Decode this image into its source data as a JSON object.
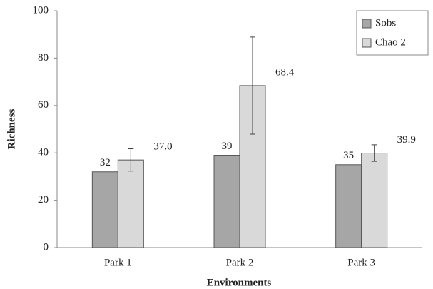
{
  "chart_data": {
    "type": "bar",
    "x_label": "Environments",
    "y_label": "Richness",
    "categories": [
      "Park 1",
      "Park 2",
      "Park 3"
    ],
    "series": [
      {
        "name": "Sobs",
        "color": "#a6a6a6",
        "values": [
          32,
          39,
          35
        ],
        "value_labels": [
          "32",
          "39",
          "35"
        ]
      },
      {
        "name": "Chao 2",
        "color": "#d9d9d9",
        "values": [
          37.0,
          68.4,
          39.9
        ],
        "value_labels": [
          "37.0",
          "68.4",
          "39.9"
        ],
        "errors": [
          4.7,
          20.5,
          3.5
        ]
      }
    ],
    "ylim": [
      0,
      100
    ],
    "yticks": [
      0,
      20,
      40,
      60,
      80,
      100
    ],
    "grid": false,
    "legend": "upper right"
  }
}
